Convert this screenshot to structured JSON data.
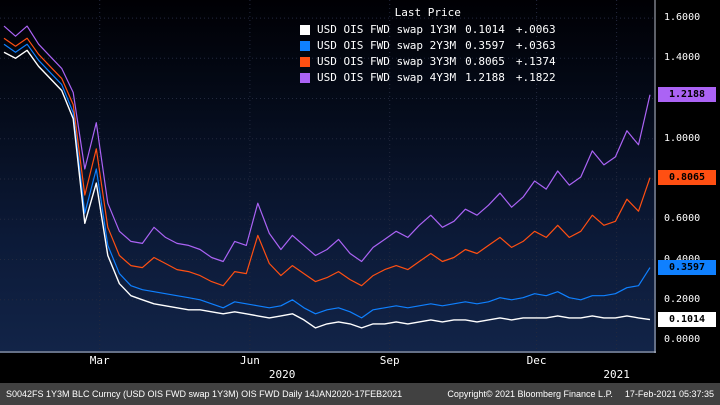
{
  "chart_data": {
    "type": "line",
    "title": "Last Price",
    "x_axis": {
      "start": "14JAN2020",
      "end": "17FEB2021",
      "ticks": [
        {
          "label": "Mar",
          "f": 0.152
        },
        {
          "label": "Jun",
          "f": 0.381
        },
        {
          "label": "Sep",
          "f": 0.594
        },
        {
          "label": "Dec",
          "f": 0.818
        }
      ],
      "year_labels": [
        {
          "label": "2020",
          "f": 0.43,
          "grid": false
        },
        {
          "label": "2021",
          "f": 0.94,
          "grid": true
        }
      ]
    },
    "y_axis": {
      "min": 0,
      "max": 1.65,
      "ticks": [
        {
          "label": "1.6000",
          "value": 1.6
        },
        {
          "label": "1.4000",
          "value": 1.4
        },
        {
          "label": "1.2000",
          "value": 1.2
        },
        {
          "label": "1.0000",
          "value": 1.0
        },
        {
          "label": "0.8000",
          "value": 0.8
        },
        {
          "label": "0.6000",
          "value": 0.6
        },
        {
          "label": "0.4000",
          "value": 0.4
        },
        {
          "label": "0.2000",
          "value": 0.2
        },
        {
          "label": "0.0000",
          "value": 0.0
        }
      ]
    },
    "series": [
      {
        "name": "USD OIS FWD swap 1Y3M",
        "color": "#ffffff",
        "last": "0.1014",
        "change": "+.0063",
        "values": [
          1.43,
          1.4,
          1.44,
          1.36,
          1.3,
          1.24,
          1.1,
          0.58,
          0.78,
          0.42,
          0.28,
          0.22,
          0.2,
          0.18,
          0.17,
          0.16,
          0.15,
          0.15,
          0.14,
          0.13,
          0.14,
          0.13,
          0.12,
          0.11,
          0.12,
          0.13,
          0.1,
          0.06,
          0.08,
          0.09,
          0.08,
          0.06,
          0.08,
          0.08,
          0.09,
          0.08,
          0.09,
          0.1,
          0.09,
          0.1,
          0.1,
          0.09,
          0.1,
          0.11,
          0.1,
          0.11,
          0.11,
          0.11,
          0.12,
          0.11,
          0.11,
          0.12,
          0.11,
          0.11,
          0.12,
          0.11,
          0.1014
        ]
      },
      {
        "name": "USD OIS FWD swap 2Y3M",
        "color": "#0f80ff",
        "last": "0.3597",
        "change": "+.0363",
        "values": [
          1.47,
          1.43,
          1.47,
          1.39,
          1.33,
          1.27,
          1.13,
          0.63,
          0.85,
          0.47,
          0.33,
          0.27,
          0.25,
          0.24,
          0.23,
          0.22,
          0.21,
          0.2,
          0.18,
          0.16,
          0.19,
          0.18,
          0.17,
          0.16,
          0.17,
          0.2,
          0.16,
          0.13,
          0.15,
          0.16,
          0.14,
          0.11,
          0.15,
          0.16,
          0.17,
          0.16,
          0.17,
          0.18,
          0.17,
          0.18,
          0.19,
          0.18,
          0.19,
          0.21,
          0.2,
          0.21,
          0.23,
          0.22,
          0.24,
          0.21,
          0.2,
          0.22,
          0.22,
          0.23,
          0.26,
          0.27,
          0.3597
        ]
      },
      {
        "name": "USD OIS FWD swap 3Y3M",
        "color": "#ff4f12",
        "last": "0.8065",
        "change": "+.1374",
        "values": [
          1.5,
          1.46,
          1.5,
          1.42,
          1.36,
          1.3,
          1.17,
          0.72,
          0.95,
          0.56,
          0.42,
          0.37,
          0.36,
          0.41,
          0.38,
          0.35,
          0.34,
          0.32,
          0.29,
          0.27,
          0.34,
          0.33,
          0.52,
          0.38,
          0.32,
          0.37,
          0.33,
          0.29,
          0.31,
          0.34,
          0.3,
          0.27,
          0.32,
          0.35,
          0.37,
          0.35,
          0.39,
          0.43,
          0.39,
          0.41,
          0.45,
          0.43,
          0.47,
          0.51,
          0.46,
          0.49,
          0.54,
          0.51,
          0.57,
          0.51,
          0.54,
          0.62,
          0.57,
          0.59,
          0.7,
          0.64,
          0.8065
        ]
      },
      {
        "name": "USD OIS FWD swap 4Y3M",
        "color": "#ab63f5",
        "last": "1.2188",
        "change": "+.1822",
        "values": [
          1.56,
          1.51,
          1.56,
          1.47,
          1.41,
          1.35,
          1.23,
          0.85,
          1.08,
          0.68,
          0.54,
          0.49,
          0.48,
          0.56,
          0.51,
          0.48,
          0.47,
          0.45,
          0.41,
          0.39,
          0.49,
          0.47,
          0.68,
          0.53,
          0.45,
          0.52,
          0.47,
          0.42,
          0.45,
          0.5,
          0.43,
          0.39,
          0.46,
          0.5,
          0.54,
          0.51,
          0.57,
          0.62,
          0.56,
          0.59,
          0.65,
          0.62,
          0.67,
          0.73,
          0.66,
          0.71,
          0.79,
          0.75,
          0.84,
          0.77,
          0.81,
          0.94,
          0.87,
          0.91,
          1.04,
          0.97,
          1.2188
        ]
      }
    ]
  },
  "footer": {
    "left": "S0042FS 1Y3M BLC Curncy (USD OIS FWD swap 1Y3M) OIS FWD  Daily 14JAN2020-17FEB2021",
    "copyright": "Copyright© 2021 Bloomberg Finance L.P.",
    "timestamp": "17-Feb-2021 05:37:35"
  }
}
